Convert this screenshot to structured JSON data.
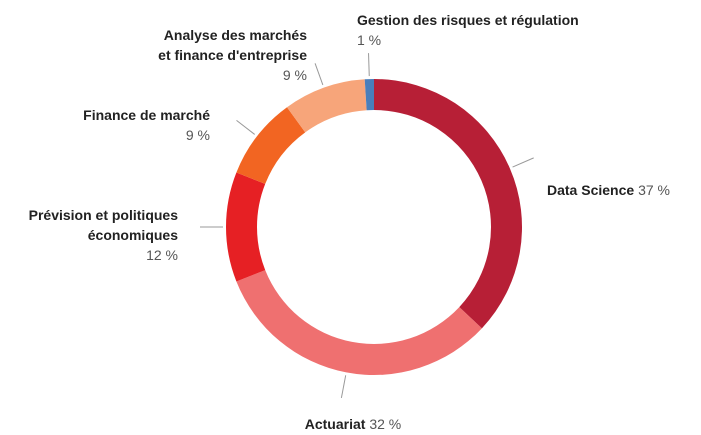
{
  "chart_data": {
    "type": "pie",
    "categories": [
      "Data Science",
      "Actuariat",
      "Prévision et politiques\néconomiques",
      "Finance de marché",
      "Analyse des marchés\net finance d'entreprise",
      "Gestion des risques et régulation"
    ],
    "values": [
      37,
      32,
      12,
      9,
      9,
      1
    ],
    "value_labels": [
      "37 %",
      "32 %",
      "12 %",
      "9 %",
      "9 %",
      "1 %"
    ],
    "colors": [
      "#b71f36",
      "#ef7070",
      "#e62024",
      "#f26522",
      "#f7a57a",
      "#4a7ebb"
    ]
  }
}
